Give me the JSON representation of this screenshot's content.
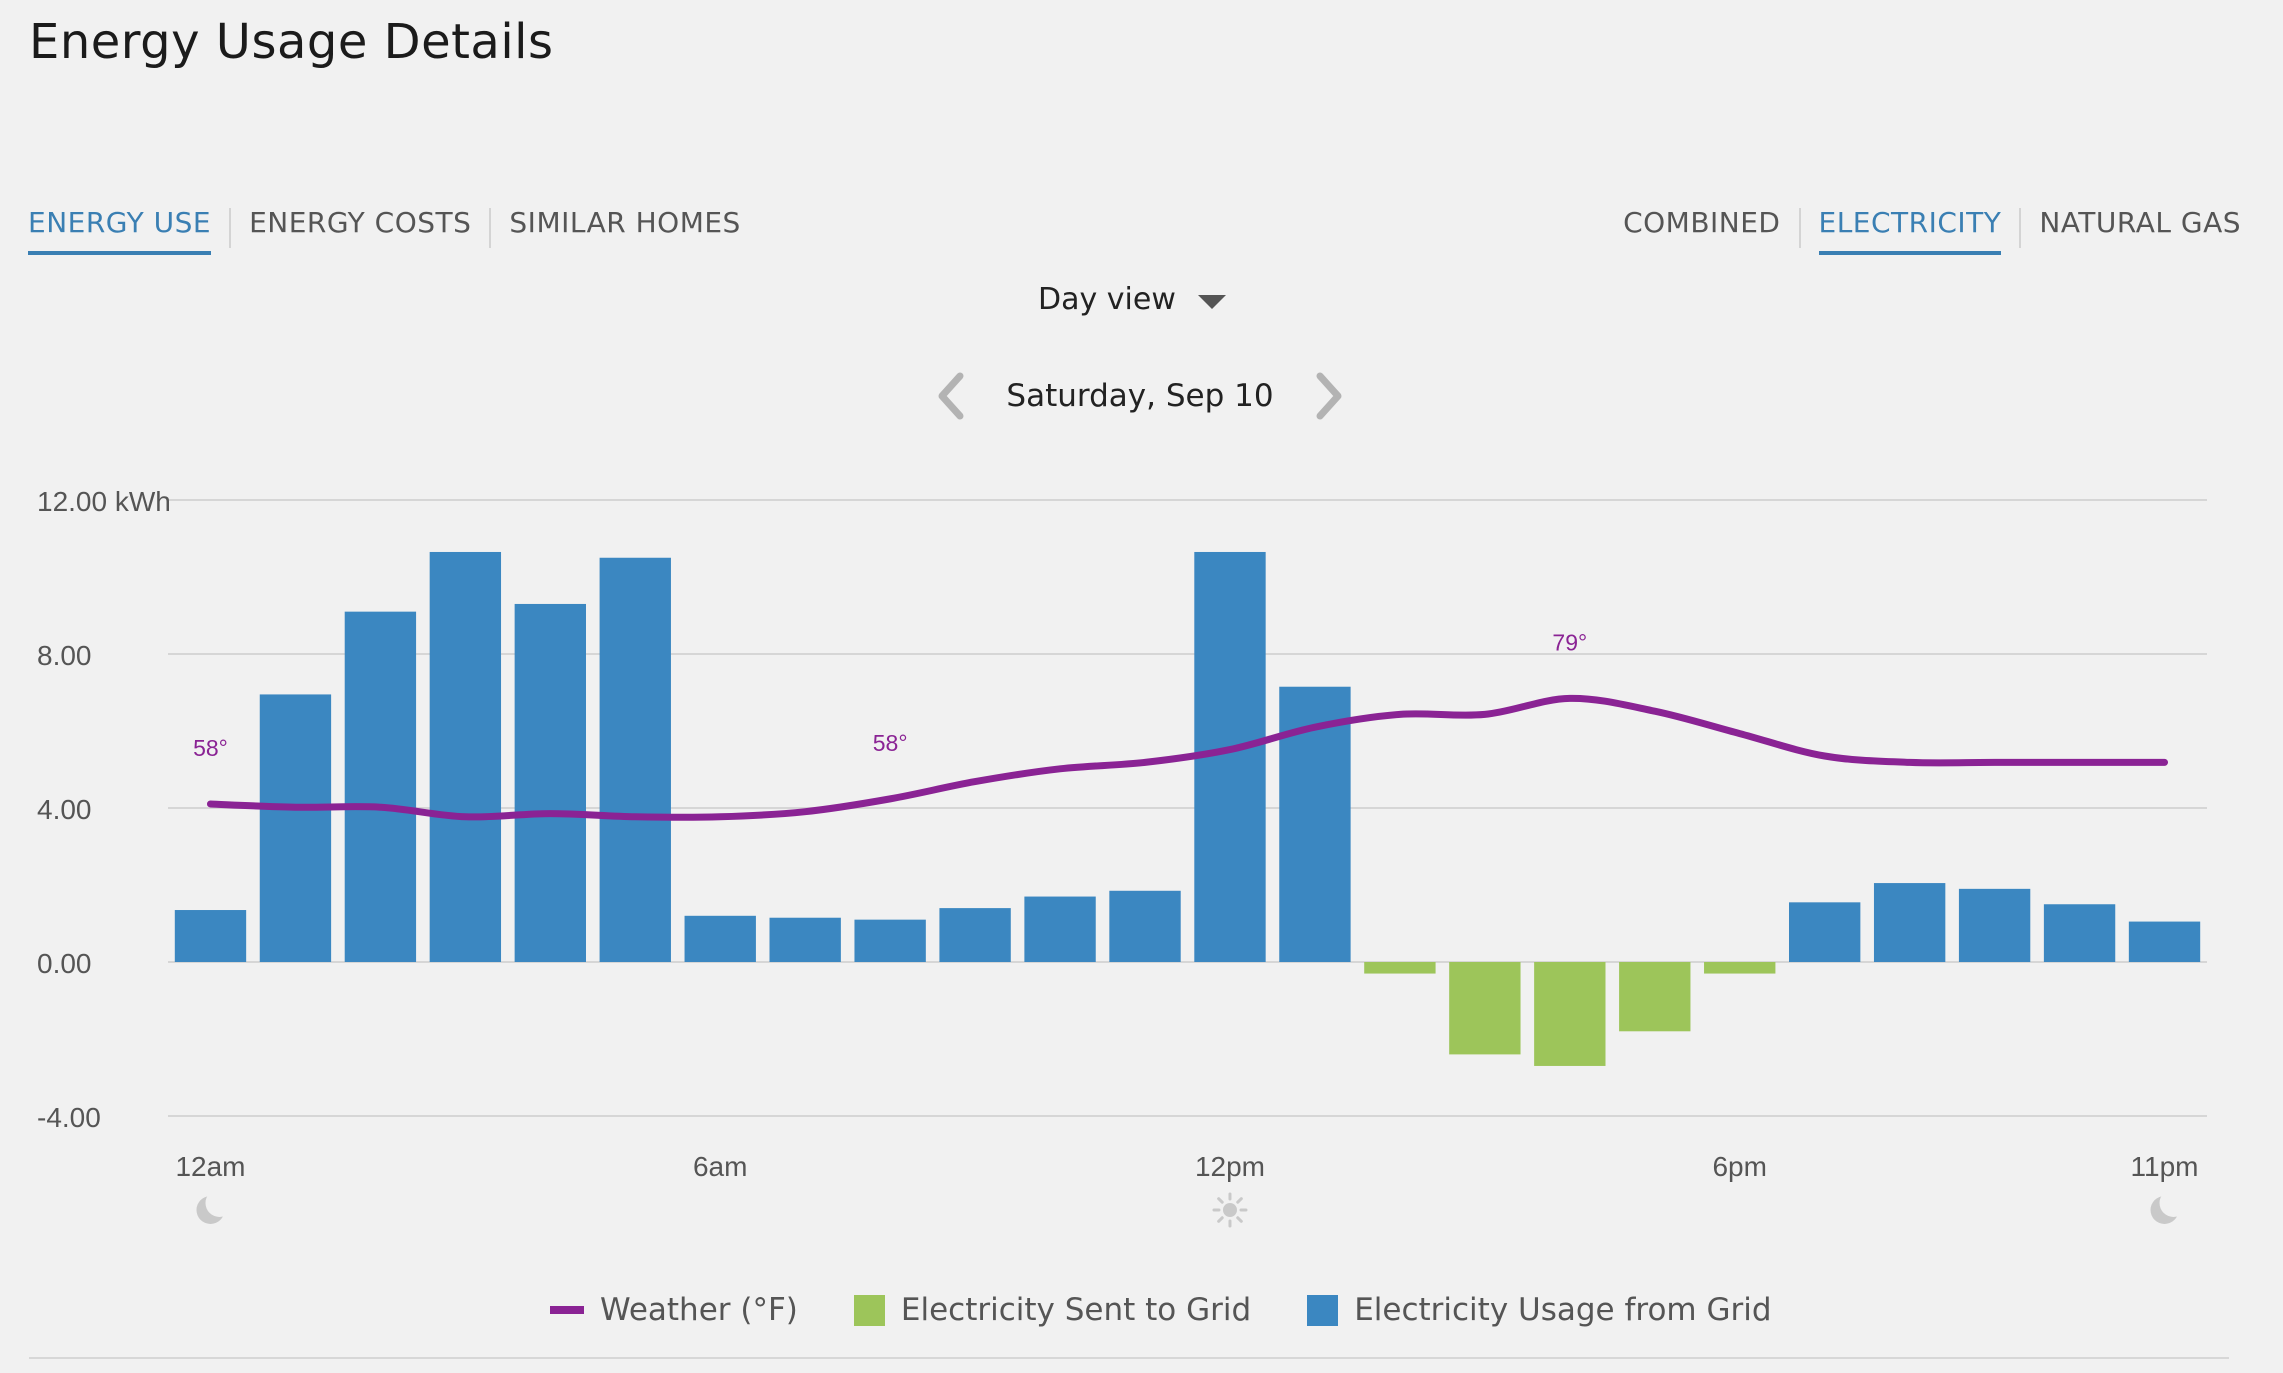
{
  "page": {
    "title": "Energy Usage Details"
  },
  "tabs_left": [
    {
      "label": "ENERGY USE",
      "active": true
    },
    {
      "label": "ENERGY COSTS",
      "active": false
    },
    {
      "label": "SIMILAR HOMES",
      "active": false
    }
  ],
  "tabs_right": [
    {
      "label": "COMBINED",
      "active": false
    },
    {
      "label": "ELECTRICITY",
      "active": true
    },
    {
      "label": "NATURAL GAS",
      "active": false
    }
  ],
  "view": {
    "selected": "Day view"
  },
  "date_nav": {
    "label": "Saturday, Sep 10"
  },
  "legend": {
    "weather": "Weather (°F)",
    "sent": "Electricity Sent to Grid",
    "usage": "Electricity Usage from Grid"
  },
  "colors": {
    "accent": "#3a7fb3",
    "usage_bar": "#3b87c1",
    "sent_bar": "#9dc55a",
    "weather_line": "#8a2394",
    "grid": "#d6d6d6"
  },
  "icons": {
    "midnight": "moon-icon",
    "noon": "sun-icon",
    "end": "moon-icon"
  },
  "chart_data": {
    "type": "bar",
    "ylabel_top": "12.00 kWh",
    "ylim": [
      -4,
      12
    ],
    "y_ticks": [
      "12.00 kWh",
      "8.00",
      "4.00",
      "0.00",
      "-4.00"
    ],
    "y_tick_values": [
      12,
      8,
      4,
      0,
      -4
    ],
    "x_tick_labels": [
      {
        "label": "12am",
        "hour": 0
      },
      {
        "label": "6am",
        "hour": 6
      },
      {
        "label": "12pm",
        "hour": 12
      },
      {
        "label": "6pm",
        "hour": 18
      },
      {
        "label": "11pm",
        "hour": 23
      }
    ],
    "hours": [
      0,
      1,
      2,
      3,
      4,
      5,
      6,
      7,
      8,
      9,
      10,
      11,
      12,
      13,
      14,
      15,
      16,
      17,
      18,
      19,
      20,
      21,
      22,
      23
    ],
    "series": [
      {
        "name": "Electricity Usage from Grid",
        "values": [
          1.35,
          6.95,
          9.1,
          10.65,
          9.3,
          10.5,
          1.2,
          1.15,
          1.1,
          1.4,
          1.7,
          1.85,
          10.65,
          7.15,
          0,
          0,
          0,
          0,
          0,
          1.55,
          2.05,
          1.9,
          1.5,
          1.05
        ]
      },
      {
        "name": "Electricity Sent to Grid",
        "values": [
          0,
          0,
          0,
          0,
          0,
          0,
          0,
          0,
          0,
          0,
          0,
          0,
          0,
          0,
          -0.3,
          -2.4,
          -2.7,
          -1.8,
          -0.3,
          0,
          0,
          0,
          0,
          0
        ]
      }
    ],
    "weather": {
      "name": "Weather (°F)",
      "values": [
        65,
        64.5,
        64.5,
        63,
        63.5,
        63,
        63,
        63.8,
        65.8,
        68.5,
        70.5,
        71.5,
        73.5,
        77,
        79,
        79,
        81.5,
        79.5,
        76,
        72.5,
        71.5,
        71.5,
        71.5,
        71.5
      ],
      "labels": [
        {
          "text": "58°",
          "hour": 0
        },
        {
          "text": "58°",
          "hour": 8
        },
        {
          "text": "79°",
          "hour": 16
        }
      ]
    }
  }
}
